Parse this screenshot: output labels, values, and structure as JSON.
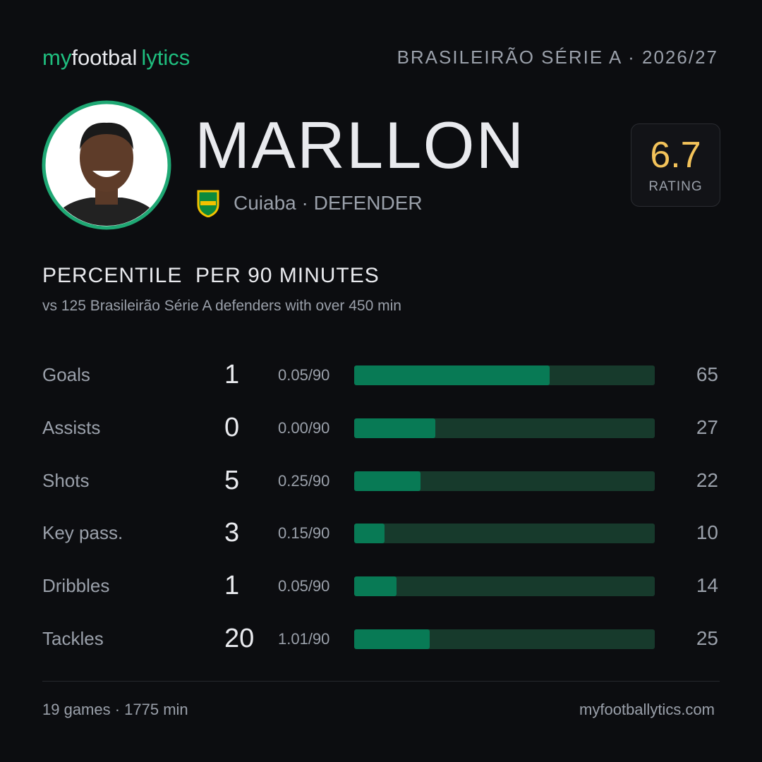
{
  "header": {
    "brand": [
      "my",
      "footbal",
      "lytics"
    ],
    "league": "BRASILEIRÃO SÉRIE A · 2026/27"
  },
  "player": {
    "name": "MARLLON",
    "club": "Cuiaba",
    "position": "DEFENDER",
    "rating": 6.7,
    "rating_label": "RATING"
  },
  "stats": {
    "title": "PERCENTILE  PER 90 MINUTES",
    "subtitle": "vs 125 Brasileirão Série A defenders with over 450 min",
    "rows": [
      {
        "label": "Goals",
        "total": 1,
        "per90": "0.05/90",
        "percentile": 65
      },
      {
        "label": "Assists",
        "total": 0,
        "per90": "0.00/90",
        "percentile": 27
      },
      {
        "label": "Shots",
        "total": 5,
        "per90": "0.25/90",
        "percentile": 22
      },
      {
        "label": "Key pass.",
        "total": 3,
        "per90": "0.15/90",
        "percentile": 10
      },
      {
        "label": "Dribbles",
        "total": 1,
        "per90": "0.05/90",
        "percentile": 14
      },
      {
        "label": "Tackles",
        "total": 20,
        "per90": "1.01/90",
        "percentile": 25
      }
    ]
  },
  "footer": {
    "summary": "19 games · 1775 min",
    "site": "myfootballytics.com"
  }
}
